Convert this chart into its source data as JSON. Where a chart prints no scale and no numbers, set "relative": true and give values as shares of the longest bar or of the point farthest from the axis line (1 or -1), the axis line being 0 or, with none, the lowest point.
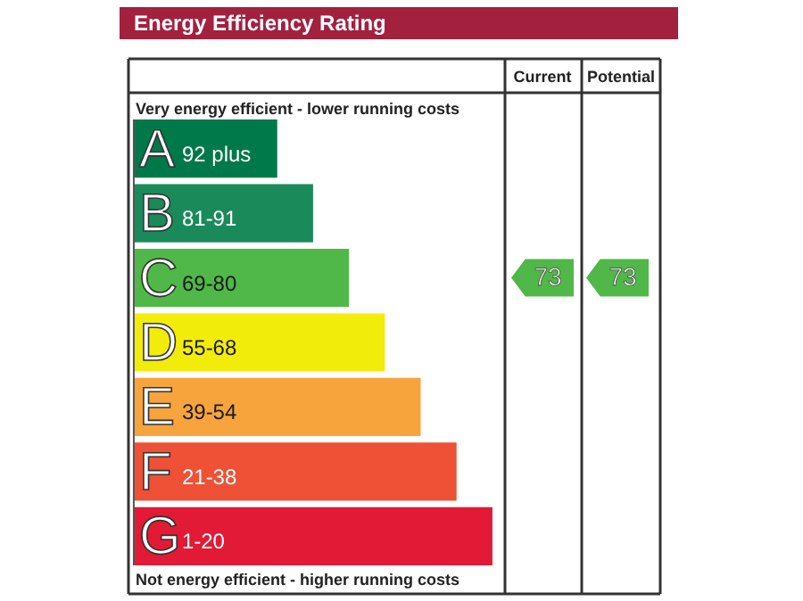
{
  "chart_data": {
    "type": "bar",
    "orientation": "horizontal",
    "relative": true,
    "title": "Energy Efficiency Rating",
    "categories": [
      "A",
      "B",
      "C",
      "D",
      "E",
      "F",
      "G"
    ],
    "values": [
      0.4,
      0.5,
      0.6,
      0.7,
      0.8,
      0.9,
      1.0
    ],
    "colors": [
      "#00794a",
      "#1a8a5a",
      "#50b848",
      "#f2ec0b",
      "#f7a43c",
      "#ee5135",
      "#e21a36"
    ],
    "annotations": [
      "Very energy efficient - lower running costs",
      "Not energy efficient - higher running costs",
      "Current",
      "Potential",
      "92 plus",
      "81-91",
      "69-80",
      "55-68",
      "39-54",
      "21-38",
      "1-20",
      "73",
      "73"
    ]
  }
}
